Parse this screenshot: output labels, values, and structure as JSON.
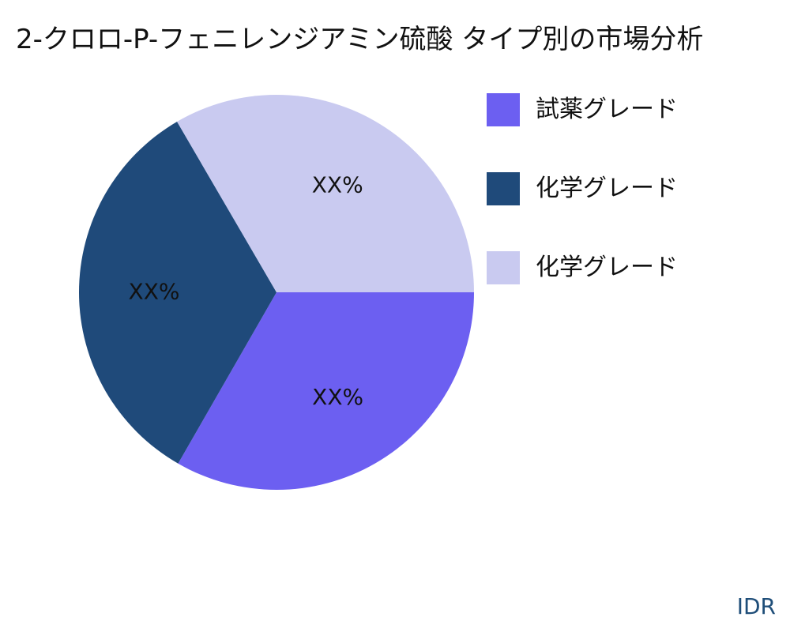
{
  "chart_data": {
    "type": "pie",
    "title": "2-クロロ-P-フェニレンジアミン硫酸 タイプ別の市場分析",
    "slices": [
      {
        "name": "試薬グレード",
        "value": 33.3,
        "label": "XX%",
        "color": "#6c5ff1"
      },
      {
        "name": "化学グレード",
        "value": 33.3,
        "label": "XX%",
        "color": "#1f4a7a"
      },
      {
        "name": "化学グレード",
        "value": 33.4,
        "label": "XX%",
        "color": "#c9caf0"
      }
    ],
    "legend_position": "right"
  },
  "watermark": "IDR"
}
